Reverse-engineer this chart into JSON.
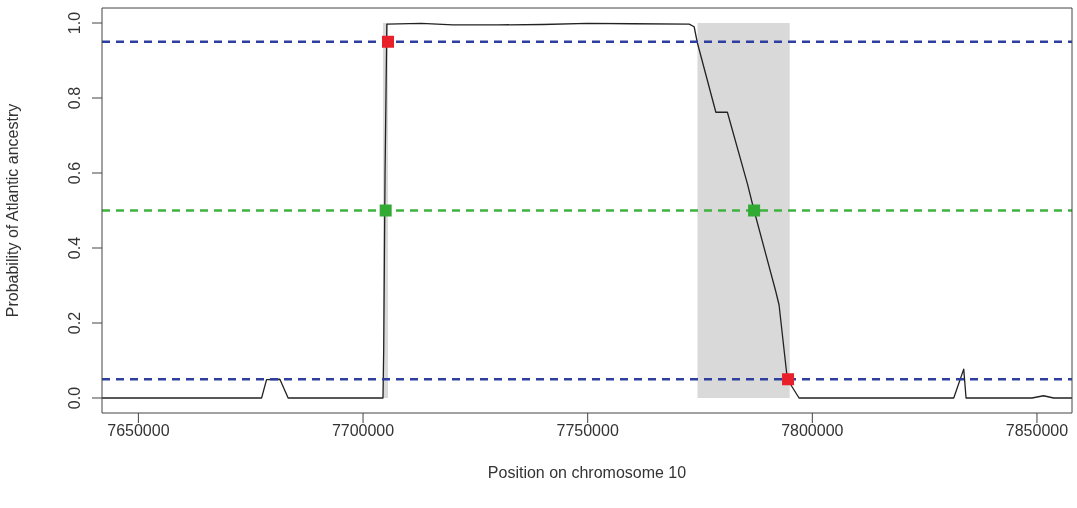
{
  "chart_data": {
    "type": "line",
    "xlabel": "Position on chromosome 10",
    "ylabel": "Probability of Atlantic ancestry",
    "xlim": [
      7641900,
      7857800
    ],
    "xticks": [
      7650000,
      7700000,
      7750000,
      7800000,
      7850000
    ],
    "ylim": [
      -0.04,
      1.04
    ],
    "yticks": [
      {
        "value": 0,
        "label": "0.0"
      },
      {
        "value": 0.2,
        "label": "0.2"
      },
      {
        "value": 0.4,
        "label": "0.4"
      },
      {
        "value": 0.6,
        "label": "0.6"
      },
      {
        "value": 0.8,
        "label": "0.8"
      },
      {
        "value": 1,
        "label": "1.0"
      }
    ],
    "grid": false,
    "bands": [
      {
        "axis": "x",
        "from": 7704440,
        "to": 7705560,
        "color": "#d9d9d9"
      },
      {
        "axis": "x",
        "from": 7774440,
        "to": 7794970,
        "color": "#d9d9d9"
      }
    ],
    "ref_lines": [
      {
        "axis": "y",
        "value": 0.95,
        "color": "#2f3f9f",
        "line_style": "dashed"
      },
      {
        "axis": "y",
        "value": 0.5,
        "color": "#3fb33f",
        "line_style": "dashed"
      },
      {
        "axis": "y",
        "value": 0.05,
        "color": "#2f3f9f",
        "line_style": "dashed"
      }
    ],
    "series": [
      {
        "color": "#222222",
        "marker": "none",
        "x": [
          7641900,
          7677420,
          7678530,
          7681490,
          7683330,
          7704440,
          7704600,
          7704900,
          7705300,
          7713000,
          7720000,
          7730000,
          7740000,
          7750000,
          7760000,
          7772600,
          7773700,
          7774400,
          7778530,
          7781100,
          7785560,
          7787040,
          7791870,
          7792600,
          7794440,
          7797050,
          7831480,
          7833700,
          7834220,
          7848890,
          7851480,
          7853700,
          7857800
        ],
        "values": [
          0,
          0,
          0.049,
          0.05,
          0,
          0,
          0.13,
          0.6,
          0.997,
          0.999,
          0.995,
          0.995,
          0.996,
          0.999,
          0.998,
          0.997,
          0.99,
          0.948,
          0.762,
          0.762,
          0.571,
          0.5,
          0.284,
          0.248,
          0.05,
          0,
          0,
          0.077,
          0,
          0,
          0.006,
          0,
          0
        ]
      },
      {
        "type": "scatter",
        "color": "#e8202a",
        "marker": "square",
        "x": [
          7705560,
          7794600
        ],
        "values": [
          0.95,
          0.05
        ]
      },
      {
        "type": "scatter",
        "color": "#33aa33",
        "marker": "square",
        "x": [
          7705040,
          7787040
        ],
        "values": [
          0.5,
          0.5
        ]
      }
    ]
  }
}
